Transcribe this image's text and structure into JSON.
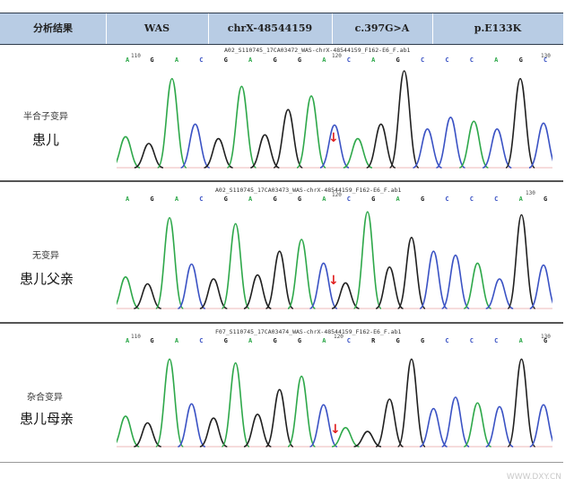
{
  "header": {
    "cells": [
      "分析结果",
      "WAS",
      "chrX-48544159",
      "c.397G>A",
      "p.E133K"
    ]
  },
  "colors": {
    "A": "#2ea84a",
    "C": "#3a52c4",
    "G": "#202020",
    "T": "#d03030",
    "arrow": "#e02020",
    "header_bg": "#b8cce4"
  },
  "panels": [
    {
      "small_label": "半合子变异",
      "big_label": "患儿",
      "file": "A02_S110745_17CA03472_WAS-chrX-48544159_F162-E6_F.ab1",
      "pos_left": "110",
      "pos_mid": "120",
      "pos_right": "130",
      "bases": [
        "A",
        "G",
        "A",
        "C",
        "G",
        "A",
        "G",
        "G",
        "A",
        "C",
        "A",
        "G",
        "C",
        "C",
        "C",
        "A",
        "G",
        "C"
      ],
      "peaks": [
        {
          "b": "A",
          "h": 0.32
        },
        {
          "b": "G",
          "h": 0.25
        },
        {
          "b": "A",
          "h": 0.92
        },
        {
          "b": "C",
          "h": 0.45
        },
        {
          "b": "G",
          "h": 0.3
        },
        {
          "b": "A",
          "h": 0.84
        },
        {
          "b": "G",
          "h": 0.34
        },
        {
          "b": "G",
          "h": 0.6
        },
        {
          "b": "A",
          "h": 0.74
        },
        {
          "b": "C",
          "h": 0.44
        },
        {
          "b": "A",
          "h": 0.3
        },
        {
          "b": "G",
          "h": 0.45
        },
        {
          "b": "G",
          "h": 1.0
        },
        {
          "b": "C",
          "h": 0.4
        },
        {
          "b": "C",
          "h": 0.52
        },
        {
          "b": "A",
          "h": 0.48
        },
        {
          "b": "C",
          "h": 0.4
        },
        {
          "b": "G",
          "h": 0.92
        },
        {
          "b": "C",
          "h": 0.46
        }
      ]
    },
    {
      "small_label": "无变异",
      "big_label": "患儿父亲",
      "file": "A02_S110745_17CA03473_WAS-chrX-48544159_F162-E6_F.ab1",
      "pos_left": "",
      "pos_mid": "120",
      "pos_right": "130",
      "bases": [
        "A",
        "G",
        "A",
        "C",
        "G",
        "A",
        "G",
        "G",
        "A",
        "C",
        "G",
        "A",
        "G",
        "C",
        "C",
        "C",
        "A",
        "G"
      ],
      "peaks": [
        {
          "b": "A",
          "h": 0.32
        },
        {
          "b": "G",
          "h": 0.25
        },
        {
          "b": "A",
          "h": 0.92
        },
        {
          "b": "C",
          "h": 0.45
        },
        {
          "b": "G",
          "h": 0.3
        },
        {
          "b": "A",
          "h": 0.86
        },
        {
          "b": "G",
          "h": 0.34
        },
        {
          "b": "G",
          "h": 0.58
        },
        {
          "b": "A",
          "h": 0.7
        },
        {
          "b": "C",
          "h": 0.46
        },
        {
          "b": "G",
          "h": 0.26
        },
        {
          "b": "A",
          "h": 0.98
        },
        {
          "b": "G",
          "h": 0.42
        },
        {
          "b": "G",
          "h": 0.72
        },
        {
          "b": "C",
          "h": 0.58
        },
        {
          "b": "C",
          "h": 0.54
        },
        {
          "b": "A",
          "h": 0.46
        },
        {
          "b": "C",
          "h": 0.3
        },
        {
          "b": "G",
          "h": 0.95
        },
        {
          "b": "C",
          "h": 0.44
        }
      ]
    },
    {
      "small_label": "杂合变异",
      "big_label": "患儿母亲",
      "file": "F07_S110745_17CA03474_WAS-chrX-48544159_F162-E6_F.ab1",
      "pos_left": "110",
      "pos_mid": "120",
      "pos_right": "130",
      "bases": [
        "A",
        "G",
        "A",
        "C",
        "G",
        "A",
        "G",
        "G",
        "A",
        "C",
        "R",
        "G",
        "G",
        "C",
        "C",
        "C",
        "A",
        "G"
      ],
      "peaks": [
        {
          "b": "A",
          "h": 0.32
        },
        {
          "b": "G",
          "h": 0.25
        },
        {
          "b": "A",
          "h": 0.92
        },
        {
          "b": "C",
          "h": 0.45
        },
        {
          "b": "G",
          "h": 0.3
        },
        {
          "b": "A",
          "h": 0.88
        },
        {
          "b": "G",
          "h": 0.34
        },
        {
          "b": "G",
          "h": 0.6
        },
        {
          "b": "A",
          "h": 0.74
        },
        {
          "b": "C",
          "h": 0.44
        },
        {
          "b": "A",
          "h": 0.2
        },
        {
          "b": "G",
          "h": 0.16
        },
        {
          "b": "G",
          "h": 0.5
        },
        {
          "b": "G",
          "h": 0.92
        },
        {
          "b": "C",
          "h": 0.4
        },
        {
          "b": "C",
          "h": 0.52
        },
        {
          "b": "A",
          "h": 0.46
        },
        {
          "b": "C",
          "h": 0.42
        },
        {
          "b": "G",
          "h": 0.92
        },
        {
          "b": "C",
          "h": 0.44
        }
      ]
    }
  ],
  "watermark": "WWW.DXY.CN"
}
